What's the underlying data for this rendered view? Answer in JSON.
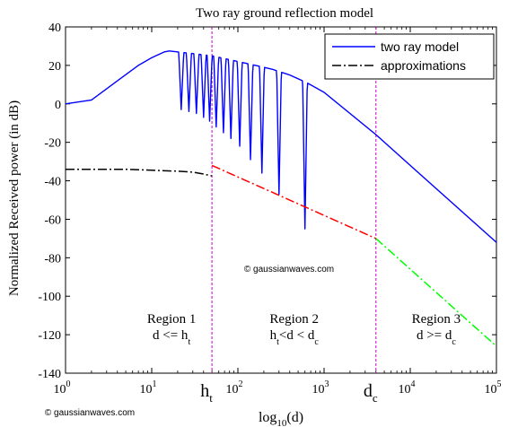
{
  "chart_data": {
    "type": "line",
    "title": "Two ray ground reflection model",
    "ylabel": "Normalized Received power (in dB)",
    "xlabel": {
      "base": "log",
      "sub": "10",
      "arg": "(d)"
    },
    "x_scale": "log",
    "xlim": [
      1,
      100000
    ],
    "ylim": [
      -140,
      40
    ],
    "y_ticks": [
      40,
      20,
      0,
      -20,
      -40,
      -60,
      -80,
      -100,
      -120,
      -140
    ],
    "x_ticks": [
      {
        "base": "10",
        "exp": "0",
        "value": 1
      },
      {
        "base": "10",
        "exp": "1",
        "value": 10
      },
      {
        "base": "10",
        "exp": "2",
        "value": 100
      },
      {
        "base": "10",
        "exp": "3",
        "value": 1000
      },
      {
        "base": "10",
        "exp": "4",
        "value": 10000
      },
      {
        "base": "10",
        "exp": "5",
        "value": 100000
      }
    ],
    "markers": [
      {
        "text": "h",
        "sub": "t",
        "x": 50
      },
      {
        "text": "d",
        "sub": "c",
        "x": 4000
      }
    ],
    "legend": {
      "placement": "top-right",
      "entries": [
        "two ray model",
        "approximations"
      ]
    },
    "colors": {
      "two_ray": "#0000ff",
      "approx_black": "#000000",
      "approx_red": "#ff0000",
      "approx_green": "#00ff00",
      "marker_line": "#cc00cc",
      "axis": "#000000"
    },
    "two_ray_model": {
      "envelope": {
        "x": [
          1,
          2,
          4,
          7,
          10,
          14,
          16,
          20,
          25,
          32,
          40,
          50,
          63,
          80,
          100,
          160,
          250,
          400,
          630,
          1000,
          2000,
          4000,
          10000,
          100000
        ],
        "y": [
          0,
          2,
          12,
          20,
          24,
          27,
          27.5,
          27,
          26.5,
          26,
          25.5,
          25,
          24,
          23,
          22,
          20,
          18,
          15,
          11,
          6,
          -5,
          -16,
          -32,
          -72
        ]
      },
      "nulls": [
        {
          "x": 22,
          "y": -3
        },
        {
          "x": 27,
          "y": -4
        },
        {
          "x": 33,
          "y": -5
        },
        {
          "x": 40,
          "y": -7
        },
        {
          "x": 47,
          "y": -9
        },
        {
          "x": 56,
          "y": -12
        },
        {
          "x": 68,
          "y": -15
        },
        {
          "x": 83,
          "y": -18
        },
        {
          "x": 105,
          "y": -22
        },
        {
          "x": 140,
          "y": -29
        },
        {
          "x": 190,
          "y": -36
        },
        {
          "x": 300,
          "y": -47
        },
        {
          "x": 600,
          "y": -65
        }
      ]
    },
    "approximations": [
      {
        "segment": "d <= ht",
        "x": [
          1,
          2,
          5,
          10,
          20,
          30,
          40,
          50
        ],
        "y": [
          -34,
          -34,
          -34,
          -34.5,
          -35,
          -35.5,
          -36.5,
          -37.5
        ]
      },
      {
        "segment": "ht < d < dc",
        "x": [
          50,
          4000
        ],
        "y": [
          -32,
          -70
        ]
      },
      {
        "segment": "d >= dc",
        "x": [
          4000,
          100000
        ],
        "y": [
          -70,
          -126
        ]
      }
    ],
    "annotations": [
      {
        "title": "Region 1",
        "sub": {
          "a": "d <= h",
          "as": "t",
          "b": "",
          "bs": ""
        },
        "x": 17
      },
      {
        "title": "Region 2",
        "sub": {
          "a": "h",
          "as": "t",
          "b": "<d < d",
          "bs": "c"
        },
        "x": 450
      },
      {
        "title": "Region 3",
        "sub": {
          "a": "d >= d",
          "as": "c",
          "b": "",
          "bs": ""
        },
        "x": 20000
      }
    ],
    "watermark": "© gaussianwaves.com"
  }
}
